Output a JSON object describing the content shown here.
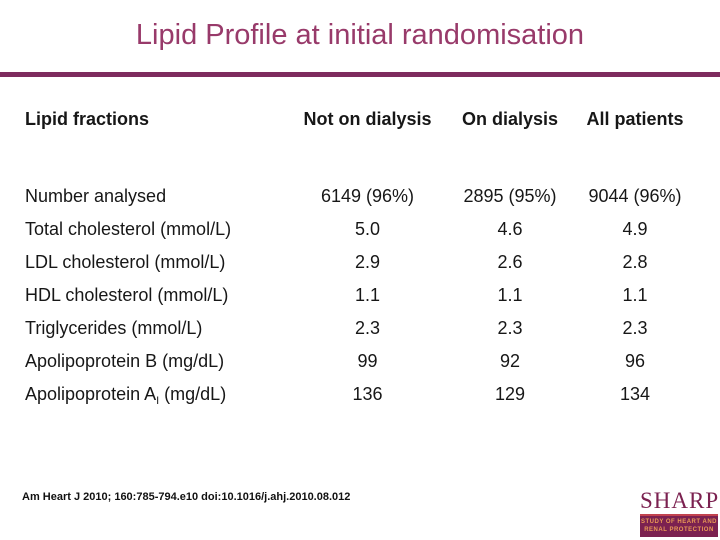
{
  "slide": {
    "title": "Lipid Profile at initial randomisation"
  },
  "table": {
    "headers": [
      "Lipid fractions",
      "Not on dialysis",
      "On dialysis",
      "All patients"
    ],
    "rows": [
      {
        "label": "Number analysed",
        "values": [
          "6149 (96%)",
          "2895 (95%)",
          "9044 (96%)"
        ]
      },
      {
        "label": "Total cholesterol (mmol/L)",
        "values": [
          "5.0",
          "4.6",
          "4.9"
        ]
      },
      {
        "label": "LDL cholesterol (mmol/L)",
        "values": [
          "2.9",
          "2.6",
          "2.8"
        ]
      },
      {
        "label": "HDL cholesterol (mmol/L)",
        "values": [
          "1.1",
          "1.1",
          "1.1"
        ]
      },
      {
        "label": "Triglycerides (mmol/L)",
        "values": [
          "2.3",
          "2.3",
          "2.3"
        ]
      },
      {
        "label": "Apolipoprotein B (mg/dL)",
        "values": [
          "99",
          "92",
          "96"
        ]
      },
      {
        "label_pre": "Apolipoprotein A",
        "label_sub": "I",
        "label_post": " (mg/dL)",
        "values": [
          "136",
          "129",
          "134"
        ]
      }
    ]
  },
  "footer": {
    "citation": "Am Heart J 2010; 160:785-794.e10 doi:10.1016/j.ahj.2010.08.012"
  },
  "logo": {
    "name": "SHARP",
    "subtitle_line1": "STUDY OF HEART AND",
    "subtitle_line2": "RENAL PROTECTION"
  },
  "colors": {
    "title_plum": "#983A6A",
    "rule_plum": "#7E2B5E",
    "logo_maroon": "#7B2150",
    "logo_orange": "#E99A56",
    "logo_red_line": "#C2434F",
    "body_text": "#171717"
  }
}
